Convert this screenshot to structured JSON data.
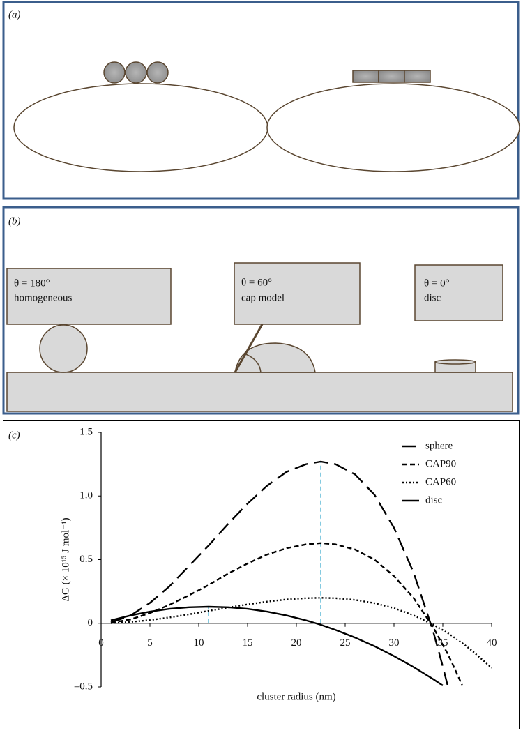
{
  "panel_a": {
    "label": "(a)"
  },
  "panel_b": {
    "label": "(b)",
    "boxes": [
      {
        "angle": "θ = 180°",
        "name": "homogeneous"
      },
      {
        "angle": "θ = 60°",
        "name": "cap model"
      },
      {
        "angle": "θ = 0°",
        "name": "disc"
      }
    ]
  },
  "panel_c": {
    "label": "(c)"
  },
  "chart_data": {
    "type": "line",
    "x_label": "cluster radius (nm)",
    "y_label": "ΔG (× 10¹⁵ J mol⁻¹)",
    "x": [
      1,
      3,
      5,
      7,
      9,
      11,
      13,
      15,
      17,
      19,
      21,
      22.5,
      24,
      26,
      28,
      30,
      32,
      34,
      35,
      35.5,
      36,
      37,
      38,
      40
    ],
    "series": [
      {
        "name": "sphere",
        "color": "#000000",
        "style": "long-dash",
        "values": [
          0.007,
          0.06,
          0.16,
          0.29,
          0.45,
          0.61,
          0.78,
          0.94,
          1.08,
          1.19,
          1.25,
          1.27,
          1.25,
          1.17,
          1.01,
          0.75,
          0.4,
          -0.06,
          -0.34,
          -0.49,
          null,
          null,
          null,
          null
        ]
      },
      {
        "name": "CAP90",
        "color": "#000000",
        "style": "dash",
        "values": [
          0.004,
          0.03,
          0.08,
          0.145,
          0.22,
          0.3,
          0.39,
          0.47,
          0.54,
          0.59,
          0.62,
          0.63,
          0.62,
          0.58,
          0.5,
          0.37,
          0.2,
          -0.03,
          -0.17,
          -0.24,
          -0.32,
          -0.49,
          null,
          null
        ]
      },
      {
        "name": "CAP60",
        "color": "#000000",
        "style": "dot",
        "values": [
          0.001,
          0.01,
          0.025,
          0.046,
          0.07,
          0.097,
          0.123,
          0.148,
          0.17,
          0.187,
          0.197,
          0.2,
          0.197,
          0.184,
          0.158,
          0.119,
          0.063,
          -0.01,
          -0.054,
          -0.077,
          -0.102,
          -0.156,
          -0.216,
          -0.35
        ]
      },
      {
        "name": "disc",
        "color": "#000000",
        "style": "solid",
        "values": [
          0.023,
          0.061,
          0.091,
          0.113,
          0.126,
          0.13,
          0.126,
          0.113,
          0.091,
          0.061,
          0.023,
          -0.012,
          -0.052,
          -0.112,
          -0.18,
          -0.258,
          -0.344,
          -0.438,
          -0.489,
          null,
          null,
          null,
          null,
          null
        ]
      }
    ],
    "xlim": [
      0,
      40
    ],
    "xticks": [
      0,
      5,
      10,
      15,
      20,
      25,
      30,
      35,
      40
    ],
    "ylim": [
      -0.5,
      1.5
    ],
    "yticks": [
      {
        "value": -0.5,
        "label": "–0.5"
      },
      0,
      0.5,
      {
        "value": 1,
        "label": "1.0"
      },
      1.5
    ],
    "marker_color": "#5bb8d6",
    "legend": "upper-right"
  }
}
